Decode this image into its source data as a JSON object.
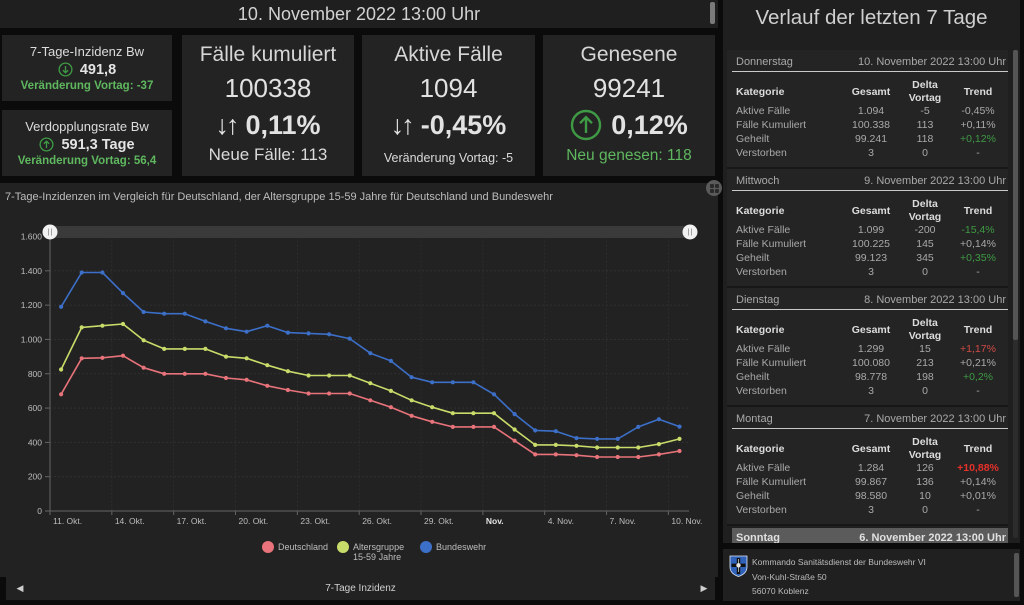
{
  "header": {
    "datetime": "10. November 2022 13:00 Uhr"
  },
  "kpis": {
    "inzidenz_bw": {
      "title": "7-Tage-Inzidenz Bw",
      "value": "491,8",
      "trend_icon": "arrow-down-circle-icon",
      "change": "Veränderung Vortag: -37"
    },
    "verdopplung_bw": {
      "title": "Verdopplungsrate Bw",
      "value": "591,3 Tage",
      "trend_icon": "arrow-up-circle-icon",
      "change": "Veränderung Vortag: 56,4"
    },
    "faelle_kumuliert": {
      "title": "Fälle kumuliert",
      "value": "100338",
      "trend_symbol": "↓↑",
      "percent": "0,11%",
      "sub": "Neue Fälle: 113"
    },
    "aktive_faelle": {
      "title": "Aktive Fälle",
      "value": "1094",
      "trend_symbol": "↓↑",
      "percent": "-0,45%",
      "sub": "Veränderung Vortag: -5"
    },
    "genesene": {
      "title": "Genesene",
      "value": "99241",
      "trend_icon": "arrow-up-circle-icon",
      "percent": "0,12%",
      "sub": "Neu genesen: 118"
    }
  },
  "chart_panel": {
    "title": "7-Tage-Inzidenzen im Vergleich für Deutschland, der Altersgruppe 15-59 Jahre für Deutschland und Bundeswehr",
    "pager_label": "7-Tage Inzidenz",
    "expand_icon": "expand-icon"
  },
  "chart_data": {
    "type": "line",
    "title": "7-Tage-Inzidenzen im Vergleich für Deutschland, der Altersgruppe 15-59 Jahre für Deutschland und Bundeswehr",
    "xlabel": "",
    "ylabel": "",
    "x": [
      "11. Okt.",
      "12. Okt.",
      "13. Okt.",
      "14. Okt.",
      "15. Okt.",
      "16. Okt.",
      "17. Okt.",
      "18. Okt.",
      "19. Okt.",
      "20. Okt.",
      "21. Okt.",
      "22. Okt.",
      "23. Okt.",
      "24. Okt.",
      "25. Okt.",
      "26. Okt.",
      "27. Okt.",
      "28. Okt.",
      "29. Okt.",
      "30. Okt.",
      "31. Okt.",
      "1. Nov.",
      "2. Nov.",
      "3. Nov.",
      "4. Nov.",
      "5. Nov.",
      "6. Nov.",
      "7. Nov.",
      "8. Nov.",
      "9. Nov.",
      "10. Nov."
    ],
    "xticks": [
      {
        "label": "11. Okt.",
        "index": 0
      },
      {
        "label": "14. Okt.",
        "index": 3
      },
      {
        "label": "17. Okt.",
        "index": 6
      },
      {
        "label": "20. Okt.",
        "index": 9
      },
      {
        "label": "23. Okt.",
        "index": 12
      },
      {
        "label": "26. Okt.",
        "index": 15
      },
      {
        "label": "29. Okt.",
        "index": 18
      },
      {
        "label": "Nov.",
        "index": 21
      },
      {
        "label": "4. Nov.",
        "index": 24
      },
      {
        "label": "7. Nov.",
        "index": 27
      },
      {
        "label": "10. Nov.",
        "index": 30
      }
    ],
    "yticks": [
      {
        "label": "0",
        "value": 0
      },
      {
        "label": "200",
        "value": 200
      },
      {
        "label": "400",
        "value": 400
      },
      {
        "label": "600",
        "value": 600
      },
      {
        "label": "800",
        "value": 800
      },
      {
        "label": "1.000",
        "value": 1000
      },
      {
        "label": "1.200",
        "value": 1200
      },
      {
        "label": "1.400",
        "value": 1400
      },
      {
        "label": "1.600",
        "value": 1600
      }
    ],
    "ylim": [
      0,
      1600
    ],
    "grid": true,
    "legend_position": "bottom",
    "series": [
      {
        "name": "Deutschland",
        "color": "#e8737a",
        "values": [
          680,
          890,
          893,
          905,
          835,
          800,
          800,
          800,
          775,
          765,
          730,
          705,
          685,
          685,
          685,
          645,
          605,
          555,
          520,
          490,
          490,
          490,
          410,
          330,
          330,
          325,
          315,
          315,
          315,
          330,
          350
        ]
      },
      {
        "name": "Altersgruppe 15-59 Jahre",
        "color": "#c8dc6a",
        "values": [
          825,
          1070,
          1080,
          1090,
          995,
          945,
          945,
          945,
          900,
          890,
          850,
          815,
          790,
          790,
          790,
          745,
          700,
          645,
          605,
          570,
          570,
          570,
          475,
          385,
          385,
          380,
          370,
          370,
          370,
          390,
          420
        ]
      },
      {
        "name": "Bundeswehr",
        "color": "#3c6fc8",
        "values": [
          1190,
          1390,
          1390,
          1270,
          1160,
          1150,
          1150,
          1105,
          1065,
          1045,
          1080,
          1040,
          1035,
          1030,
          1005,
          920,
          875,
          780,
          750,
          750,
          750,
          680,
          565,
          470,
          465,
          425,
          420,
          420,
          490,
          535,
          491.8
        ]
      }
    ]
  },
  "right_panel": {
    "title": "Verlauf der letzten 7 Tage",
    "columns": {
      "kategorie": "Kategorie",
      "gesamt": "Gesamt",
      "delta_line1": "Delta",
      "delta_line2": "Vortag",
      "trend": "Trend"
    },
    "days": [
      {
        "weekday": "Donnerstag",
        "date": "10. November 2022 13:00 Uhr",
        "rows": [
          {
            "kategorie": "Aktive Fälle",
            "gesamt": "1.094",
            "delta": "-5",
            "trend": "-0,45%",
            "trend_status": "neutral"
          },
          {
            "kategorie": "Fälle Kumuliert",
            "gesamt": "100.338",
            "delta": "113",
            "trend": "+0,11%",
            "trend_status": "neutral"
          },
          {
            "kategorie": "Geheilt",
            "gesamt": "99.241",
            "delta": "118",
            "trend": "+0,12%",
            "trend_status": "good"
          },
          {
            "kategorie": "Verstorben",
            "gesamt": "3",
            "delta": "0",
            "trend": "-",
            "trend_status": "neutral"
          }
        ]
      },
      {
        "weekday": "Mittwoch",
        "date": "9. November 2022 13:00 Uhr",
        "rows": [
          {
            "kategorie": "Aktive Fälle",
            "gesamt": "1.099",
            "delta": "-200",
            "trend": "-15,4%",
            "trend_status": "good"
          },
          {
            "kategorie": "Fälle Kumuliert",
            "gesamt": "100.225",
            "delta": "145",
            "trend": "+0,14%",
            "trend_status": "neutral"
          },
          {
            "kategorie": "Geheilt",
            "gesamt": "99.123",
            "delta": "345",
            "trend": "+0,35%",
            "trend_status": "good"
          },
          {
            "kategorie": "Verstorben",
            "gesamt": "3",
            "delta": "0",
            "trend": "-",
            "trend_status": "neutral"
          }
        ]
      },
      {
        "weekday": "Dienstag",
        "date": "8. November 2022 13:00 Uhr",
        "rows": [
          {
            "kategorie": "Aktive Fälle",
            "gesamt": "1.299",
            "delta": "15",
            "trend": "+1,17%",
            "trend_status": "bad"
          },
          {
            "kategorie": "Fälle Kumuliert",
            "gesamt": "100.080",
            "delta": "213",
            "trend": "+0,21%",
            "trend_status": "neutral"
          },
          {
            "kategorie": "Geheilt",
            "gesamt": "98.778",
            "delta": "198",
            "trend": "+0,2%",
            "trend_status": "good"
          },
          {
            "kategorie": "Verstorben",
            "gesamt": "3",
            "delta": "0",
            "trend": "-",
            "trend_status": "neutral"
          }
        ]
      },
      {
        "weekday": "Montag",
        "date": "7. November 2022 13:00 Uhr",
        "rows": [
          {
            "kategorie": "Aktive Fälle",
            "gesamt": "1.284",
            "delta": "126",
            "trend": "+10,88%",
            "trend_status": "bad-strong"
          },
          {
            "kategorie": "Fälle Kumuliert",
            "gesamt": "99.867",
            "delta": "136",
            "trend": "+0,14%",
            "trend_status": "neutral"
          },
          {
            "kategorie": "Geheilt",
            "gesamt": "98.580",
            "delta": "10",
            "trend": "+0,01%",
            "trend_status": "neutral"
          },
          {
            "kategorie": "Verstorben",
            "gesamt": "3",
            "delta": "0",
            "trend": "-",
            "trend_status": "neutral"
          }
        ]
      }
    ],
    "partial_day": {
      "weekday": "Sonntag",
      "date": "6. November 2022 13:00 Uhr"
    }
  },
  "footer": {
    "lines": [
      "Kommando Sanitätsdienst der Bundeswehr VI",
      "Von-Kuhl-Straße 50",
      "56070 Koblenz"
    ],
    "logo_icon": "bundeswehr-medical-shield-icon"
  },
  "colors": {
    "positive": "#5fb85f",
    "trend_good": "#3e9a44",
    "trend_bad": "#d24a45",
    "trend_bad_strong": "#e8302a",
    "panel_bg": "#232323",
    "page_bg": "#0b0b0b"
  }
}
